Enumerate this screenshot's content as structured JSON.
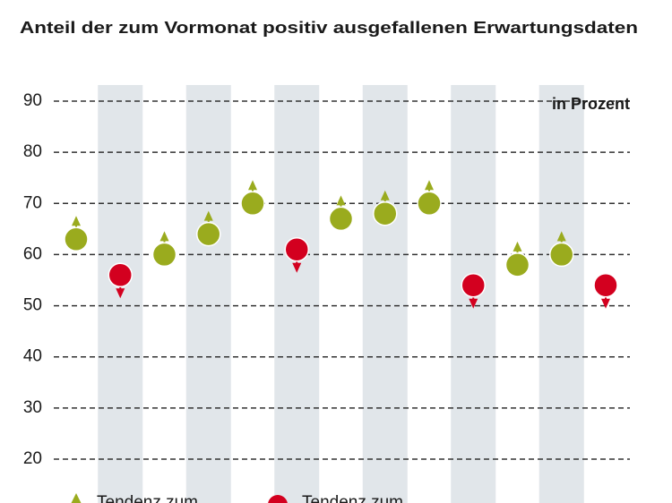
{
  "chart_data": {
    "type": "dot",
    "title": "Anteil der zum Vormonat positiv ausgefallenen Erwartungsdaten",
    "unit_label": "in Prozent",
    "categories": [
      null,
      null,
      null,
      null,
      null,
      null,
      null,
      null,
      null,
      null,
      null,
      null,
      null
    ],
    "series": [
      {
        "name": "Tendenz zum",
        "color": "#9aab1e",
        "direction": "up",
        "values": [
          63,
          null,
          60,
          64,
          70,
          null,
          67,
          68,
          70,
          null,
          58,
          60,
          null
        ]
      },
      {
        "name": "Tendenz zum",
        "color": "#d3001f",
        "direction": "down",
        "values": [
          null,
          56,
          null,
          null,
          null,
          61,
          null,
          null,
          null,
          54,
          null,
          null,
          54
        ]
      }
    ],
    "ylim": [
      20,
      90
    ],
    "yticks": [
      20,
      30,
      40,
      50,
      60,
      70,
      80,
      90
    ],
    "grid": true
  }
}
